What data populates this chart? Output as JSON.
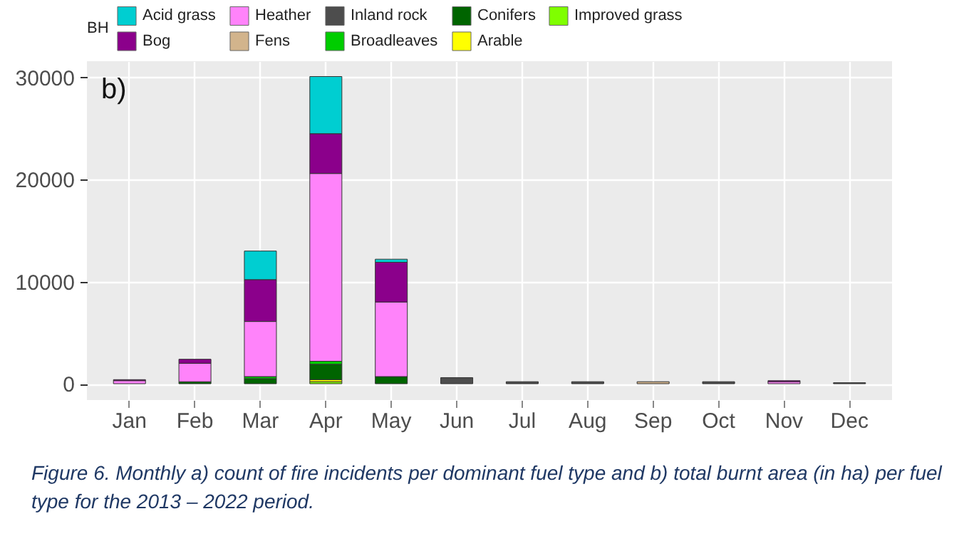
{
  "chart_data": {
    "type": "bar",
    "stacked": true,
    "legend": "top",
    "legend_title": "BH",
    "grid": true,
    "categories": [
      "Jan",
      "Feb",
      "Mar",
      "Apr",
      "May",
      "Jun",
      "Jul",
      "Aug",
      "Sep",
      "Oct",
      "Nov",
      "Dec"
    ],
    "ylim": [
      -1600,
      31600
    ],
    "yticks": [
      0,
      10000,
      20000,
      30000
    ],
    "series": [
      {
        "name": "Improved grass",
        "color": "#7fff00",
        "values": [
          0,
          0,
          0,
          200,
          0,
          0,
          0,
          0,
          0,
          0,
          0,
          0
        ]
      },
      {
        "name": "Arable",
        "color": "#ffff00",
        "values": [
          0,
          0,
          0,
          200,
          0,
          0,
          0,
          0,
          0,
          0,
          0,
          0
        ]
      },
      {
        "name": "Conifers",
        "color": "#006400",
        "values": [
          0,
          200,
          500,
          1500,
          700,
          0,
          0,
          0,
          0,
          0,
          0,
          0
        ]
      },
      {
        "name": "Broadleaves",
        "color": "#00cd00",
        "values": [
          0,
          0,
          200,
          300,
          0,
          0,
          0,
          0,
          0,
          0,
          0,
          0
        ]
      },
      {
        "name": "Inland rock",
        "color": "#4d4d4d",
        "values": [
          0,
          0,
          0,
          0,
          0,
          600,
          200,
          200,
          0,
          200,
          0,
          100
        ]
      },
      {
        "name": "Fens",
        "color": "#d2b48c",
        "values": [
          0,
          0,
          0,
          0,
          0,
          0,
          0,
          0,
          200,
          0,
          0,
          0
        ]
      },
      {
        "name": "Heather",
        "color": "#ff83fa",
        "values": [
          300,
          1800,
          5400,
          18400,
          7300,
          0,
          0,
          0,
          0,
          0,
          200,
          0
        ]
      },
      {
        "name": "Bog",
        "color": "#8b008b",
        "values": [
          100,
          400,
          4100,
          3900,
          3900,
          0,
          0,
          0,
          0,
          0,
          100,
          0
        ]
      },
      {
        "name": "Acid grass",
        "color": "#00ced1",
        "values": [
          0,
          0,
          2800,
          5600,
          300,
          0,
          0,
          0,
          0,
          0,
          0,
          0
        ]
      }
    ],
    "annotations": [
      "b)",
      "Figure 6. Monthly a) count of fire incidents per dominant fuel type and b) total burnt area (in ha) per fuel type for the 2013 – 2022 period."
    ]
  }
}
